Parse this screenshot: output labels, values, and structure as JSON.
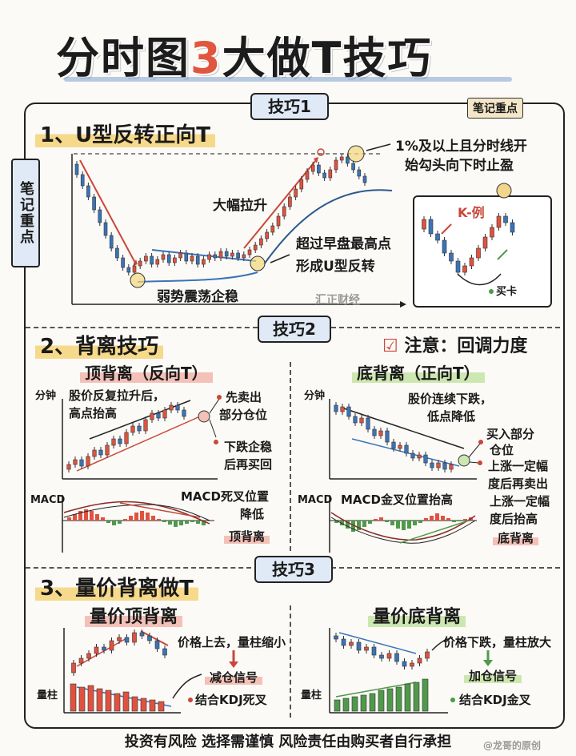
{
  "header": {
    "title_a": "分时图",
    "title_num": "3",
    "title_b": "大做T技巧"
  },
  "side_note": "笔记重点",
  "skill1": {
    "tag": "技巧1",
    "note": "笔记重点",
    "heading": "1、U型反转正向T",
    "label_rise": "大幅拉升",
    "label_weak": "弱势震荡企稳",
    "label_stop_l1": "1%及以上且分时线开",
    "label_stop_l2": "始勾头向下时止盈",
    "label_break_l1": "超过早盘最高点",
    "label_break_l2": "形成U型反转",
    "kline_title": "K-例",
    "kline_buy": "买卡",
    "watermark": "汇正财经"
  },
  "skill2": {
    "tag": "技巧2",
    "heading": "2、背离技巧",
    "notice": "注意：回调力度",
    "left": {
      "title": "顶背离（反向T）",
      "ylabel": "分钟",
      "desc_l1": "股价反复拉升后，",
      "desc_l2": "高点抬高",
      "act1_l1": "先卖出",
      "act1_l2": "部分仓位",
      "act2_l1": "下跌企稳",
      "act2_l2": "后再买回",
      "macd_label": "MACD",
      "macd_desc_l1": "MACD死叉位置",
      "macd_desc_l2": "降低",
      "result": "顶背离"
    },
    "right": {
      "title": "底背离（正向T）",
      "ylabel": "分钟",
      "desc_l1": "股价连续下跌，",
      "desc_l2": "低点降低",
      "act1_l1": "买入部分",
      "act1_l2": "仓位",
      "act2_l1": "上涨一定幅",
      "act2_l2": "度后再卖出",
      "macd_label": "MACD",
      "macd_desc": "MACD金叉位置抬高",
      "macd_desc2_l1": "上涨一定幅",
      "macd_desc2_l2": "度后抬高",
      "result": "底背离"
    }
  },
  "skill3": {
    "tag": "技巧3",
    "heading": "3、量价背离做T",
    "left": {
      "title": "量价顶背离",
      "desc": "价格上去，量柱缩小",
      "signal": "减仓信号",
      "combo": "结合KDJ死叉",
      "vol_label": "量柱"
    },
    "right": {
      "title": "量价底背离",
      "desc": "价格下跌，量柱放大",
      "signal": "加仓信号",
      "combo": "结合KDJ金叉",
      "vol_label": "量柱"
    }
  },
  "footer": "投资有风险 选择需谨慎 风险责任由购买者自行承担",
  "credit": "@龙哥的原创",
  "colors": {
    "up": "#e0523f",
    "down": "#3a74b8",
    "green": "#4f9a4a",
    "accent": "#e0563f"
  }
}
